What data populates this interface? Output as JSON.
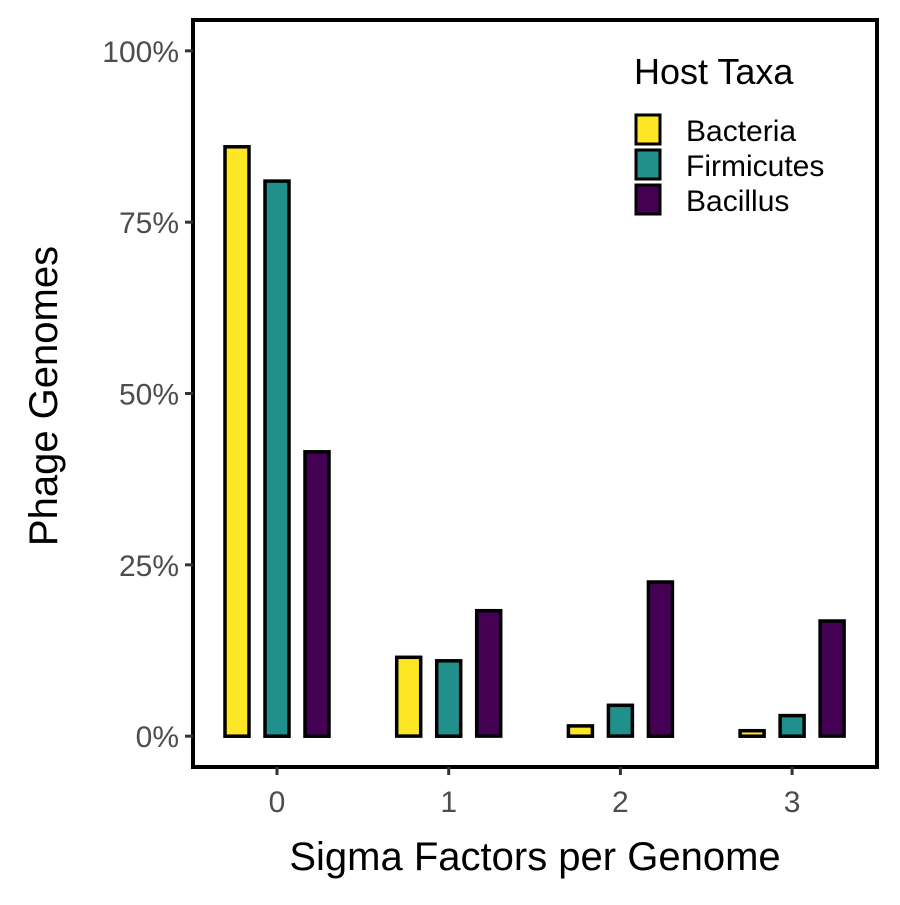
{
  "chart_data": {
    "type": "bar",
    "xlabel": "Sigma Factors per Genome",
    "ylabel": "Phage Genomes",
    "categories": [
      "0",
      "1",
      "2",
      "3"
    ],
    "ylim": [
      -0.045,
      1.045
    ],
    "y_ticks": [
      {
        "value": 0,
        "label": "0%"
      },
      {
        "value": 0.25,
        "label": "25%"
      },
      {
        "value": 0.5,
        "label": "50%"
      },
      {
        "value": 0.75,
        "label": "75%"
      },
      {
        "value": 1.0,
        "label": "100%"
      }
    ],
    "legend": {
      "title": "Host Taxa",
      "placement": "top-right"
    },
    "grid": false,
    "series": [
      {
        "name": "Bacteria",
        "color": "#FDE725",
        "values": [
          0.86,
          0.115,
          0.015,
          0.008
        ]
      },
      {
        "name": "Firmicutes",
        "color": "#21908C",
        "values": [
          0.81,
          0.11,
          0.045,
          0.03
        ]
      },
      {
        "name": "Bacillus",
        "color": "#440154",
        "values": [
          0.415,
          0.183,
          0.225,
          0.168
        ]
      }
    ]
  }
}
